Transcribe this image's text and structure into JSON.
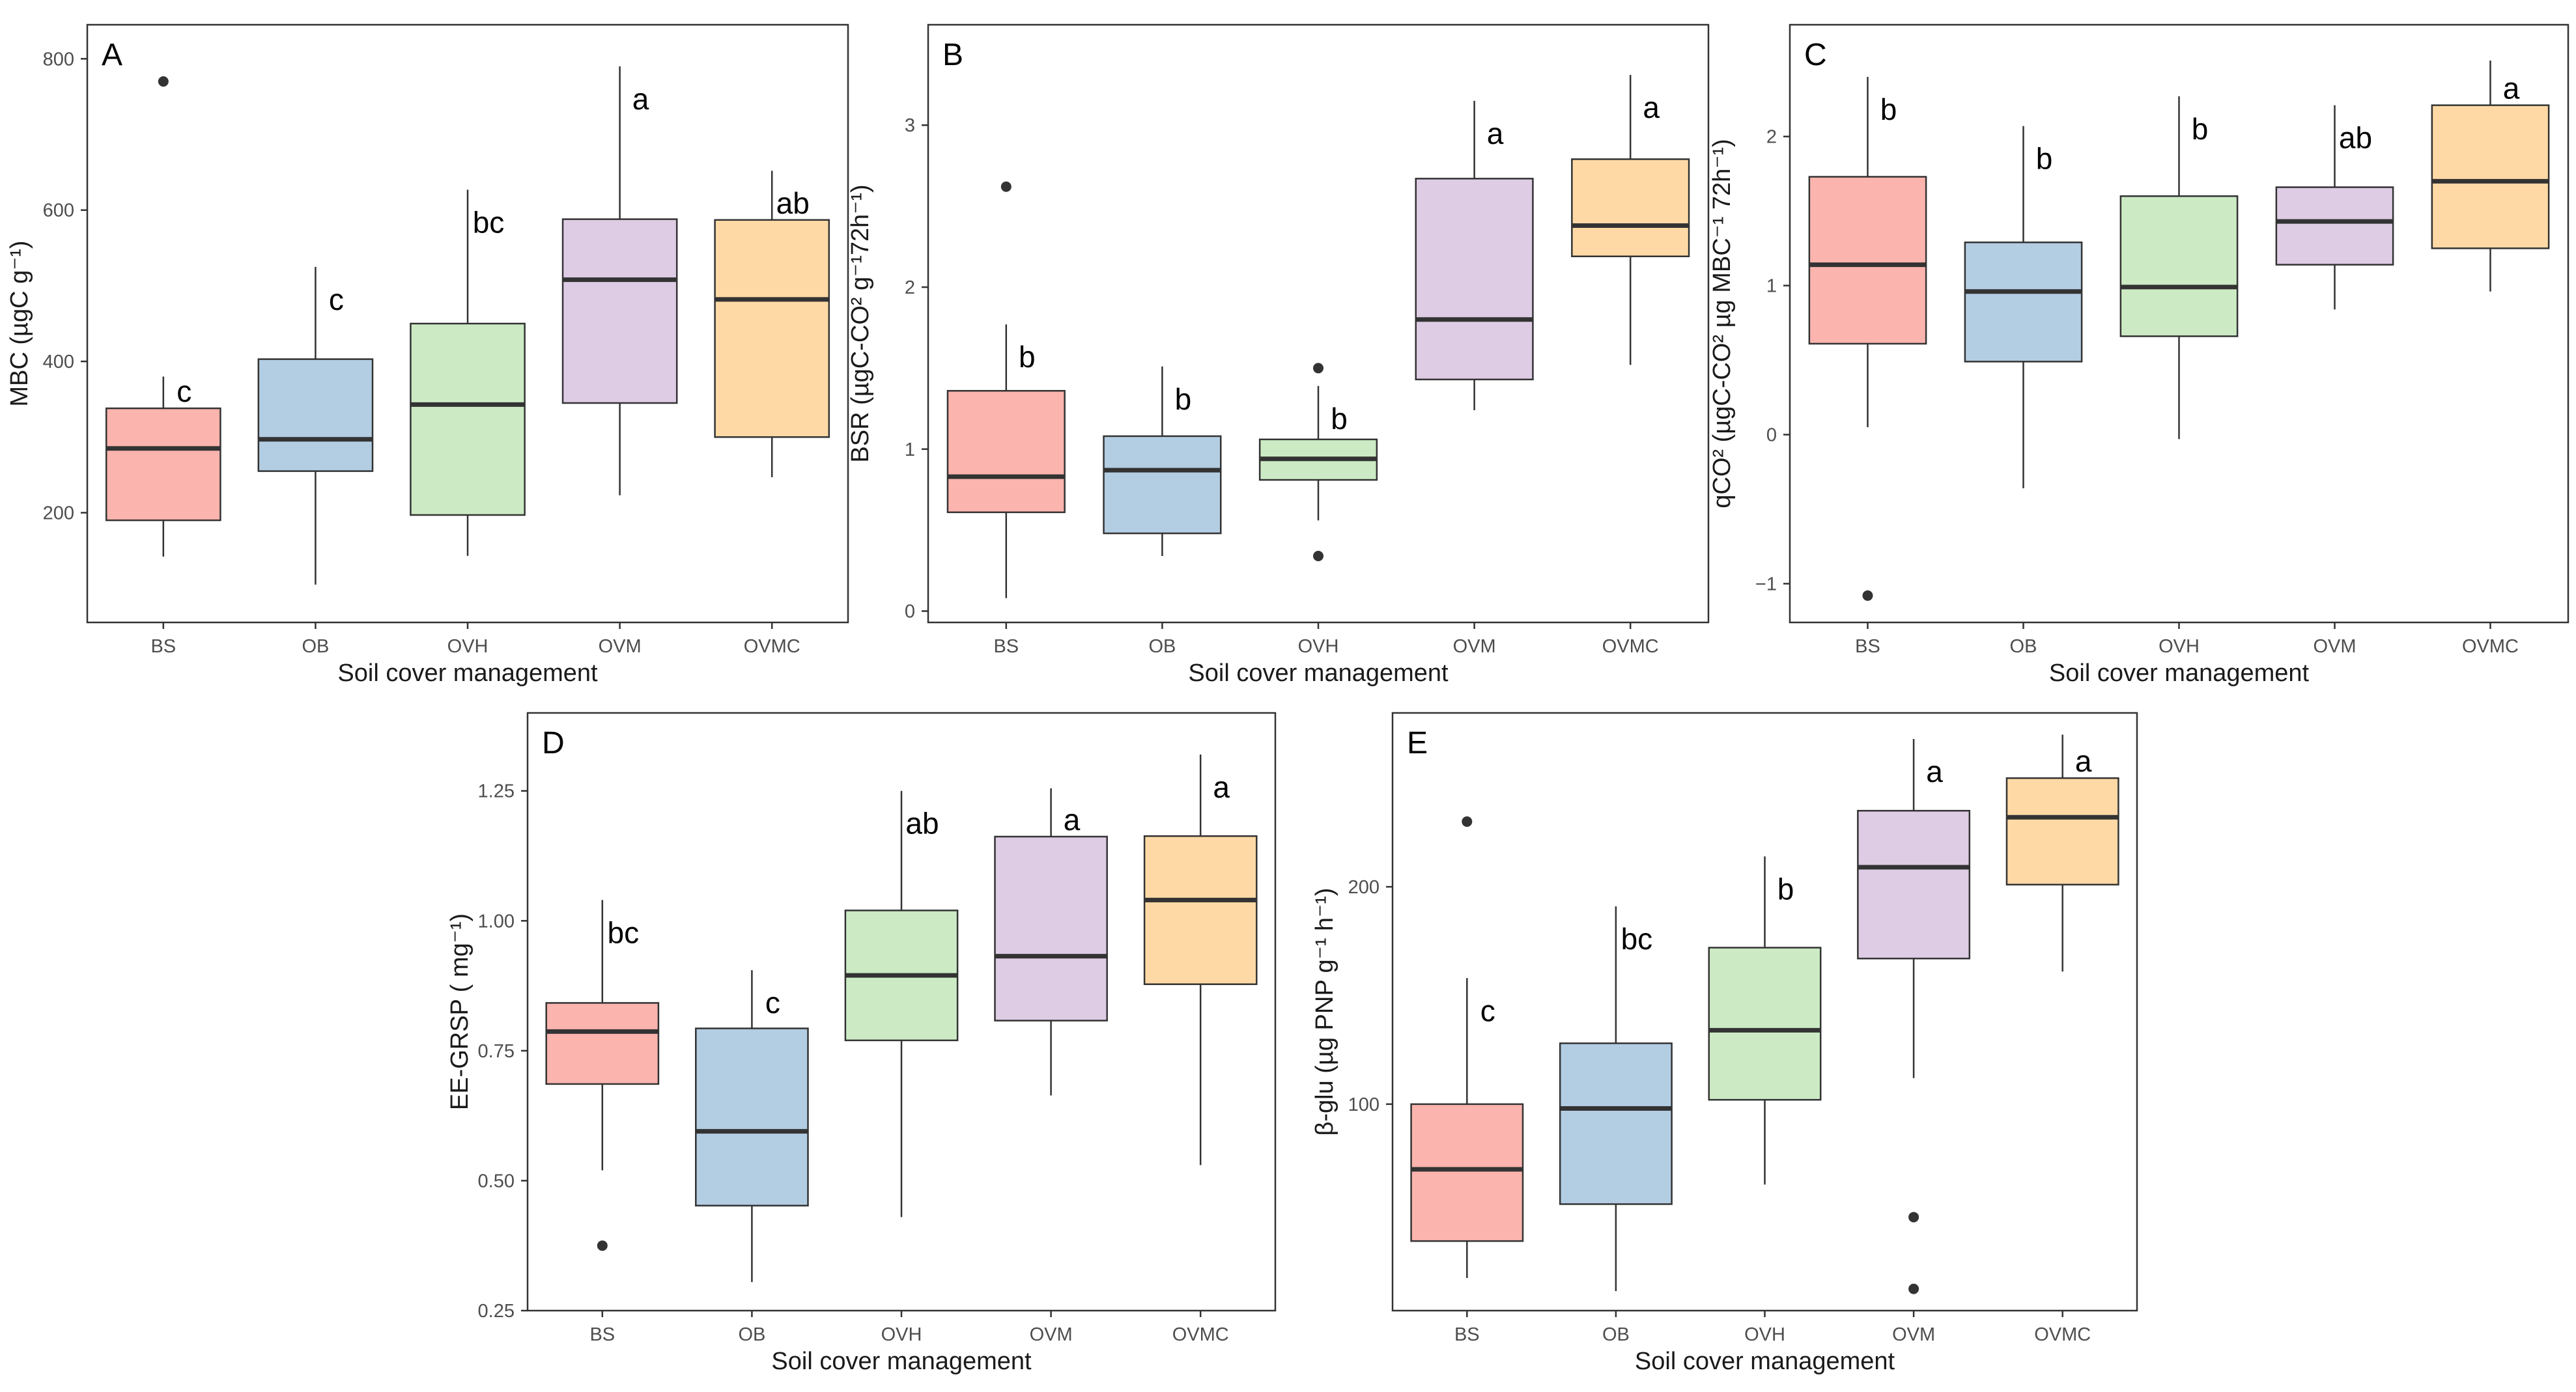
{
  "chart_data": [
    {
      "panel": "A",
      "type": "box",
      "xlabel": "Soil cover management",
      "ylabel": "MBC (µgC g⁻¹)",
      "ylim": [
        55,
        845
      ],
      "yticks": [
        200,
        400,
        600,
        800
      ],
      "yticklabels": [
        "200",
        "400",
        "600",
        "800"
      ],
      "categories": [
        "BS",
        "OB",
        "OVH",
        "OVM",
        "OVMC"
      ],
      "colors": [
        "#fbb4ae",
        "#b3cde3",
        "#ccebc5",
        "#decbe4",
        "#fed9a6"
      ],
      "boxes": [
        {
          "category": "BS",
          "low": 142,
          "q1": 190,
          "median": 285,
          "q3": 338,
          "high": 380,
          "outliers": [
            770
          ],
          "letter": "c"
        },
        {
          "category": "OB",
          "low": 105,
          "q1": 255,
          "median": 297,
          "q3": 403,
          "high": 525,
          "outliers": [],
          "letter": "c"
        },
        {
          "category": "OVH",
          "low": 143,
          "q1": 197,
          "median": 343,
          "q3": 450,
          "high": 627,
          "outliers": [],
          "letter": "bc"
        },
        {
          "category": "OVM",
          "low": 223,
          "q1": 345,
          "median": 508,
          "q3": 588,
          "high": 790,
          "outliers": [],
          "letter": "a"
        },
        {
          "category": "OVMC",
          "low": 247,
          "q1": 300,
          "median": 482,
          "q3": 587,
          "high": 652,
          "outliers": [],
          "letter": "ab"
        }
      ]
    },
    {
      "panel": "B",
      "type": "box",
      "xlabel": "Soil cover management",
      "ylabel": "BSR (µgC-CO² g⁻¹72h⁻¹)",
      "ylim": [
        -0.07,
        3.62
      ],
      "yticks": [
        0,
        1,
        2,
        3
      ],
      "yticklabels": [
        "0",
        "1",
        "2",
        "3"
      ],
      "categories": [
        "BS",
        "OB",
        "OVH",
        "OVM",
        "OVMC"
      ],
      "colors": [
        "#fbb4ae",
        "#b3cde3",
        "#ccebc5",
        "#decbe4",
        "#fed9a6"
      ],
      "boxes": [
        {
          "category": "BS",
          "low": 0.08,
          "q1": 0.61,
          "median": 0.83,
          "q3": 1.36,
          "high": 1.77,
          "outliers": [
            2.62
          ],
          "letter": "b"
        },
        {
          "category": "OB",
          "low": 0.34,
          "q1": 0.48,
          "median": 0.87,
          "q3": 1.08,
          "high": 1.51,
          "outliers": [],
          "letter": "b"
        },
        {
          "category": "OVH",
          "low": 0.56,
          "q1": 0.81,
          "median": 0.94,
          "q3": 1.06,
          "high": 1.39,
          "outliers": [
            1.5,
            0.34
          ],
          "letter": "b"
        },
        {
          "category": "OVM",
          "low": 1.24,
          "q1": 1.43,
          "median": 1.8,
          "q3": 2.67,
          "high": 3.15,
          "outliers": [],
          "letter": "a"
        },
        {
          "category": "OVMC",
          "low": 1.52,
          "q1": 2.19,
          "median": 2.38,
          "q3": 2.79,
          "high": 3.31,
          "outliers": [],
          "letter": "a"
        }
      ]
    },
    {
      "panel": "C",
      "type": "box",
      "xlabel": "Soil cover management",
      "ylabel": "qCO² (µgC-CO² µg MBC⁻¹ 72h⁻¹)",
      "ylim": [
        -1.26,
        2.75
      ],
      "yticks": [
        -1,
        0,
        1,
        2
      ],
      "yticklabels": [
        "−1",
        "0",
        "1",
        "2"
      ],
      "categories": [
        "BS",
        "OB",
        "OVH",
        "OVM",
        "OVMC"
      ],
      "colors": [
        "#fbb4ae",
        "#b3cde3",
        "#ccebc5",
        "#decbe4",
        "#fed9a6"
      ],
      "boxes": [
        {
          "category": "BS",
          "low": 0.05,
          "q1": 0.61,
          "median": 1.14,
          "q3": 1.73,
          "high": 2.4,
          "outliers": [
            -1.08
          ],
          "letter": "b"
        },
        {
          "category": "OB",
          "low": -0.36,
          "q1": 0.49,
          "median": 0.96,
          "q3": 1.29,
          "high": 2.07,
          "outliers": [],
          "letter": "b"
        },
        {
          "category": "OVH",
          "low": -0.03,
          "q1": 0.66,
          "median": 0.99,
          "q3": 1.6,
          "high": 2.27,
          "outliers": [],
          "letter": "b"
        },
        {
          "category": "OVM",
          "low": 0.84,
          "q1": 1.14,
          "median": 1.43,
          "q3": 1.66,
          "high": 2.21,
          "outliers": [],
          "letter": "ab"
        },
        {
          "category": "OVMC",
          "low": 0.96,
          "q1": 1.25,
          "median": 1.7,
          "q3": 2.21,
          "high": 2.51,
          "outliers": [],
          "letter": "a"
        }
      ]
    },
    {
      "panel": "D",
      "type": "box",
      "xlabel": "Soil cover management",
      "ylabel": "EE-GRSP ( mg⁻¹)",
      "ylim": [
        0.25,
        1.4
      ],
      "yticks": [
        0.25,
        0.5,
        0.75,
        1.0,
        1.25
      ],
      "yticklabels": [
        "0.25",
        "0.50",
        "0.75",
        "1.00",
        "1.25"
      ],
      "categories": [
        "BS",
        "OB",
        "OVH",
        "OVM",
        "OVMC"
      ],
      "colors": [
        "#fbb4ae",
        "#b3cde3",
        "#ccebc5",
        "#decbe4",
        "#fed9a6"
      ],
      "boxes": [
        {
          "category": "BS",
          "low": 0.52,
          "q1": 0.686,
          "median": 0.787,
          "q3": 0.842,
          "high": 1.04,
          "outliers": [
            0.375
          ],
          "letter": "bc"
        },
        {
          "category": "OB",
          "low": 0.305,
          "q1": 0.452,
          "median": 0.595,
          "q3": 0.793,
          "high": 0.905,
          "outliers": [],
          "letter": "c"
        },
        {
          "category": "OVH",
          "low": 0.43,
          "q1": 0.77,
          "median": 0.895,
          "q3": 1.02,
          "high": 1.25,
          "outliers": [],
          "letter": "ab"
        },
        {
          "category": "OVM",
          "low": 0.664,
          "q1": 0.808,
          "median": 0.932,
          "q3": 1.162,
          "high": 1.255,
          "outliers": [],
          "letter": "a"
        },
        {
          "category": "OVMC",
          "low": 0.53,
          "q1": 0.878,
          "median": 1.04,
          "q3": 1.163,
          "high": 1.32,
          "outliers": [],
          "letter": "a"
        }
      ]
    },
    {
      "panel": "E",
      "type": "box",
      "xlabel": "Soil cover management",
      "ylabel": "β-glu (µg PNP g⁻¹ h⁻¹)",
      "ylim": [
        5,
        280
      ],
      "yticks": [
        100,
        200
      ],
      "yticklabels": [
        "100",
        "200"
      ],
      "categories": [
        "BS",
        "OB",
        "OVH",
        "OVM",
        "OVMC"
      ],
      "colors": [
        "#fbb4ae",
        "#b3cde3",
        "#ccebc5",
        "#decbe4",
        "#fed9a6"
      ],
      "boxes": [
        {
          "category": "BS",
          "low": 20,
          "q1": 37,
          "median": 70,
          "q3": 100,
          "high": 158,
          "outliers": [
            230
          ],
          "letter": "c"
        },
        {
          "category": "OB",
          "low": 14,
          "q1": 54,
          "median": 98,
          "q3": 128,
          "high": 191,
          "outliers": [],
          "letter": "bc"
        },
        {
          "category": "OVH",
          "low": 63,
          "q1": 102,
          "median": 134,
          "q3": 172,
          "high": 214,
          "outliers": [],
          "letter": "b"
        },
        {
          "category": "OVM",
          "low": 112,
          "q1": 167,
          "median": 209,
          "q3": 235,
          "high": 268,
          "outliers": [
            48,
            15
          ],
          "letter": "a"
        },
        {
          "category": "OVMC",
          "low": 161,
          "q1": 201,
          "median": 232,
          "q3": 250,
          "high": 270,
          "outliers": [],
          "letter": "a"
        }
      ]
    }
  ]
}
